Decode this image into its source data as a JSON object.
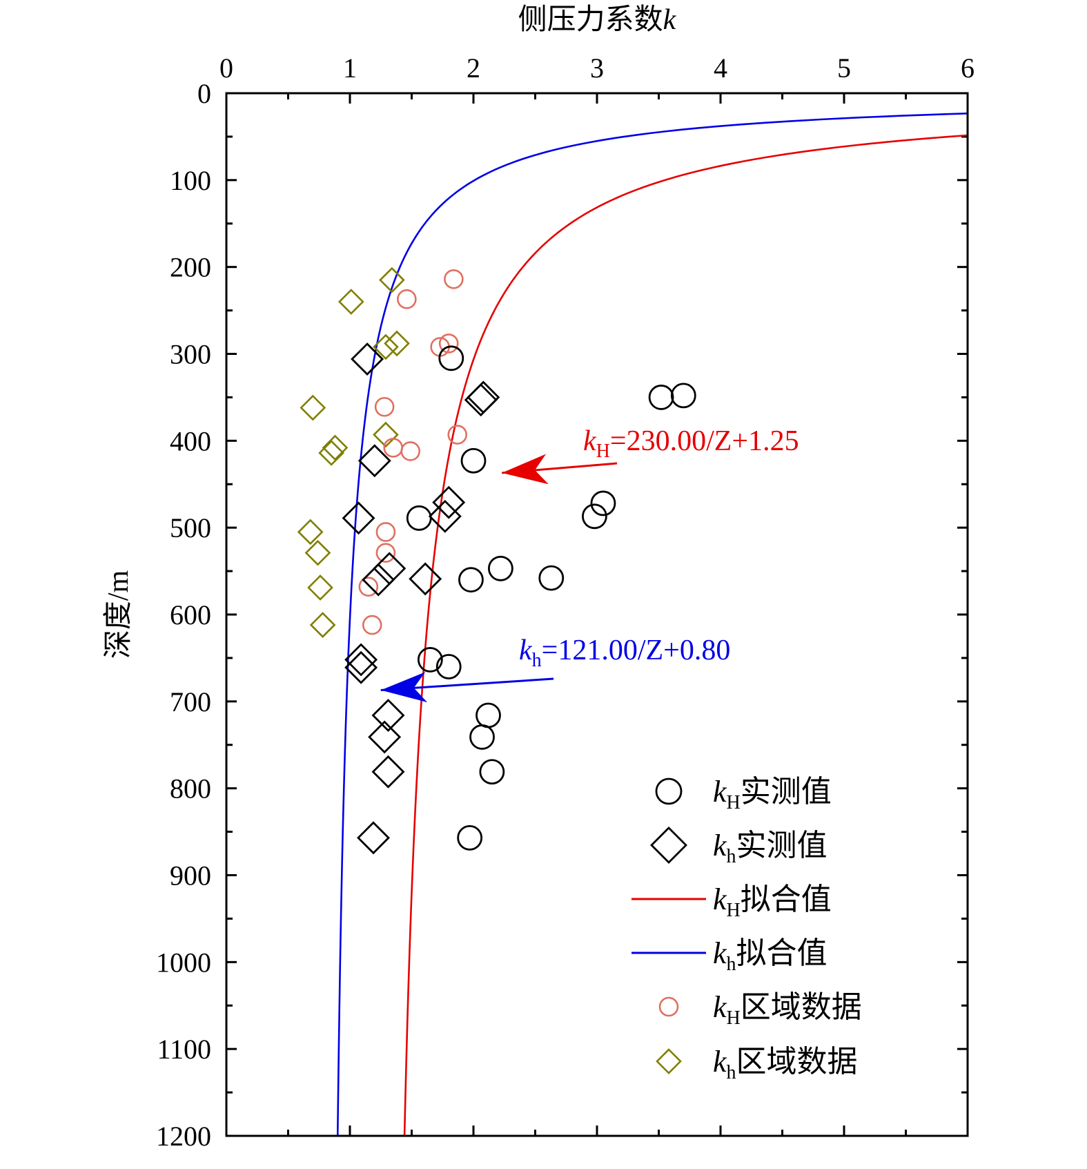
{
  "chart_data": {
    "type": "scatter",
    "title": "",
    "xlabel": {
      "prefix": "侧压力系数",
      "var": "k"
    },
    "ylabel": "深度/m",
    "xlim": [
      0,
      6
    ],
    "ylim": [
      0,
      1200
    ],
    "x_axis_position": "top",
    "y_axis_direction": "downward",
    "x_ticks": [
      "0",
      "1",
      "2",
      "3",
      "4",
      "5",
      "6"
    ],
    "y_ticks": [
      "0",
      "100",
      "200",
      "300",
      "400",
      "500",
      "600",
      "700",
      "800",
      "900",
      "1000",
      "1100",
      "1200"
    ],
    "legend_position": "bottom-right",
    "series": [
      {
        "name": "kH实测值",
        "var": "k",
        "sub": "H",
        "label": "实测值",
        "marker": "circle",
        "color": "#000000",
        "points": [
          [
            1.82,
            305
          ],
          [
            3.52,
            350
          ],
          [
            3.7,
            348
          ],
          [
            2.0,
            423
          ],
          [
            3.05,
            472
          ],
          [
            2.98,
            487
          ],
          [
            1.56,
            489
          ],
          [
            2.22,
            547
          ],
          [
            1.98,
            560
          ],
          [
            2.63,
            558
          ],
          [
            1.65,
            652
          ],
          [
            1.8,
            660
          ],
          [
            2.12,
            716
          ],
          [
            2.07,
            741
          ],
          [
            2.15,
            781
          ],
          [
            1.97,
            857
          ]
        ]
      },
      {
        "name": "kh实测值",
        "var": "k",
        "sub": "h",
        "label": "实测值",
        "marker": "diamond",
        "color": "#000000",
        "points": [
          [
            1.14,
            306
          ],
          [
            2.08,
            350
          ],
          [
            2.06,
            353
          ],
          [
            1.2,
            423
          ],
          [
            1.8,
            471
          ],
          [
            1.77,
            487
          ],
          [
            1.07,
            489
          ],
          [
            1.32,
            547
          ],
          [
            1.23,
            560
          ],
          [
            1.61,
            559
          ],
          [
            1.09,
            652
          ],
          [
            1.09,
            661
          ],
          [
            1.31,
            716
          ],
          [
            1.28,
            741
          ],
          [
            1.31,
            781
          ],
          [
            1.19,
            857
          ]
        ]
      },
      {
        "name": "kH拟合值",
        "var": "k",
        "sub": "H",
        "label": "拟合值",
        "type": "line",
        "color": "#e60000",
        "equation": {
          "a": 230.0,
          "b": 1.25
        },
        "equation_text": "=230.00/Z+1.25",
        "annotation_point": [
          2.23,
          437
        ]
      },
      {
        "name": "kh拟合值",
        "var": "k",
        "sub": "h",
        "label": "拟合值",
        "type": "line",
        "color": "#0000e6",
        "equation": {
          "a": 121.0,
          "b": 0.8
        },
        "equation_text": "=121.00/Z+0.80",
        "annotation_point": [
          1.25,
          687
        ]
      },
      {
        "name": "kH区域数据",
        "var": "k",
        "sub": "H",
        "label": "区域数据",
        "marker": "circle-small",
        "color": "#e07060",
        "points": [
          [
            1.84,
            214
          ],
          [
            1.46,
            237
          ],
          [
            1.73,
            292
          ],
          [
            1.8,
            288
          ],
          [
            1.28,
            361
          ],
          [
            1.87,
            393
          ],
          [
            1.35,
            408
          ],
          [
            1.49,
            412
          ],
          [
            1.29,
            505
          ],
          [
            1.29,
            529
          ],
          [
            1.15,
            568
          ],
          [
            1.18,
            612
          ]
        ]
      },
      {
        "name": "kh区域数据",
        "var": "k",
        "sub": "h",
        "label": "区域数据",
        "marker": "diamond-small",
        "color": "#7f7f00",
        "points": [
          [
            1.34,
            215
          ],
          [
            1.01,
            240
          ],
          [
            1.29,
            292
          ],
          [
            1.38,
            288
          ],
          [
            0.7,
            362
          ],
          [
            1.29,
            393
          ],
          [
            0.88,
            408
          ],
          [
            0.85,
            414
          ],
          [
            0.68,
            505
          ],
          [
            0.74,
            529
          ],
          [
            0.76,
            569
          ],
          [
            0.78,
            612
          ]
        ]
      }
    ]
  }
}
